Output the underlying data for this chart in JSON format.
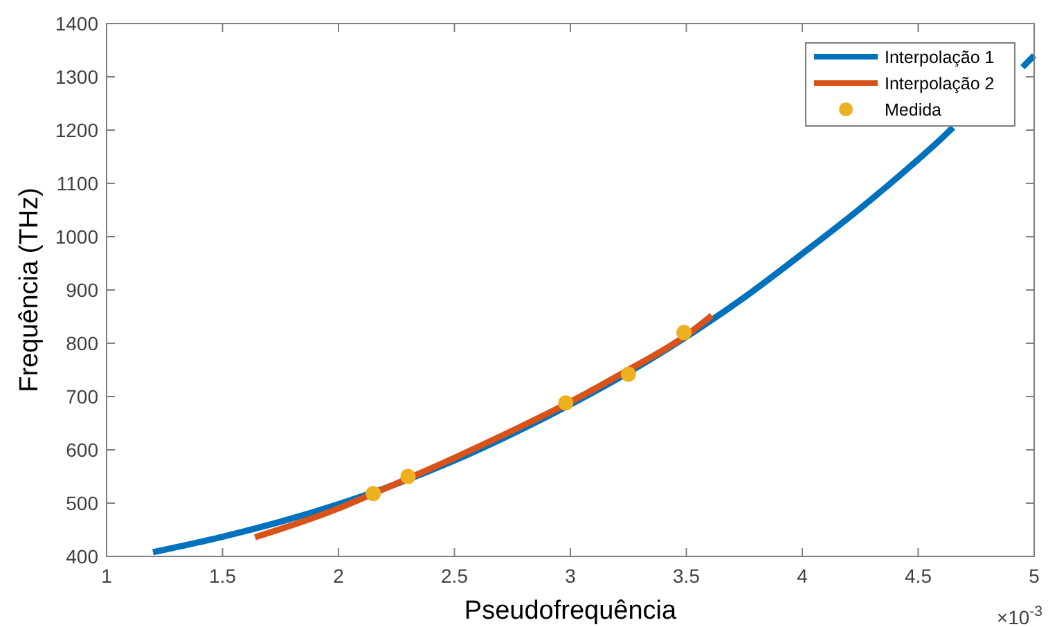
{
  "chart_data": {
    "type": "line",
    "xlabel": "Pseudofrequência",
    "ylabel": "Frequência (THz)",
    "xlim": [
      1,
      5
    ],
    "ylim": [
      400,
      1400
    ],
    "xticks": [
      1,
      1.5,
      2,
      2.5,
      3,
      3.5,
      4,
      4.5,
      5
    ],
    "yticks": [
      400,
      500,
      600,
      700,
      800,
      900,
      1000,
      1100,
      1200,
      1300,
      1400
    ],
    "grid": false,
    "legend": "top right",
    "annotations": [
      "×10$^{-3}$"
    ],
    "series": [
      {
        "name": "Interpolação 1",
        "color": "#0072bd",
        "x": [
          1.2,
          1.5,
          1.75,
          2,
          2.25,
          2.5,
          2.75,
          3,
          3.25,
          3.5,
          3.75,
          4,
          4.25,
          4.5,
          4.6,
          4.65,
          4.8,
          4.95,
          5
        ],
        "values": [
          408,
          437,
          465,
          498,
          536,
          580,
          630,
          685,
          745,
          812,
          886,
          968,
          1053,
          1145,
          1184,
          1205,
          null,
          1318,
          1340
        ]
      },
      {
        "name": "Interpolação 2",
        "color": "#d95319",
        "x": [
          1.64,
          2,
          2.15,
          2.5,
          2.75,
          3,
          3.25,
          3.5,
          3.61
        ],
        "values": [
          436,
          490,
          518,
          585,
          636,
          690,
          750,
          815,
          852
        ]
      },
      {
        "name": "Medida",
        "type": "scatter",
        "marker": "circle",
        "color": "#edb120",
        "x": [
          2.15,
          2.3,
          2.98,
          3.25,
          3.49
        ],
        "values": [
          518,
          550,
          688,
          742,
          820
        ]
      }
    ]
  }
}
